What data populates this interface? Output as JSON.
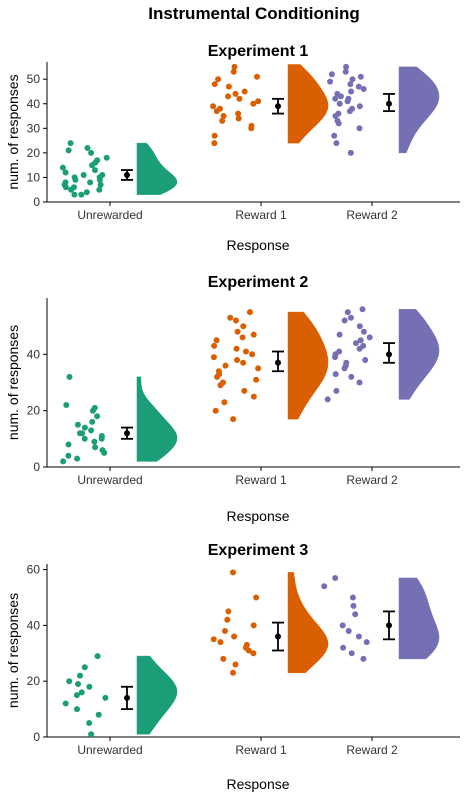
{
  "figure": {
    "title": "Instrumental Conditioning"
  },
  "colors": {
    "Unrewarded": "#1b9e77",
    "Reward 1": "#d95f02",
    "Reward 2": "#7570b3"
  },
  "chart_data": [
    {
      "type": "scatter",
      "subtype": "raincloud",
      "title": "Experiment 1",
      "xlabel": "Response",
      "ylabel": "num. of responses",
      "ylim": [
        0,
        57
      ],
      "yticks": [
        0,
        10,
        20,
        30,
        40,
        50
      ],
      "categories": [
        "Unrewarded",
        "Reward 1",
        "Reward 2"
      ],
      "series": [
        {
          "category": "Unrewarded",
          "mean": 11,
          "ci": [
            9,
            13
          ],
          "points": [
            3,
            3,
            4,
            5,
            5,
            6,
            6,
            7,
            7,
            8,
            8,
            9,
            9,
            10,
            10,
            11,
            11,
            12,
            13,
            14,
            15,
            16,
            17,
            18,
            20,
            21,
            22,
            24
          ],
          "density_range": [
            3,
            24
          ]
        },
        {
          "category": "Reward 1",
          "mean": 39,
          "ci": [
            36,
            42
          ],
          "points": [
            24,
            27,
            30,
            31,
            33,
            34,
            35,
            36,
            37,
            38,
            39,
            40,
            41,
            42,
            43,
            44,
            45,
            47,
            48,
            50,
            51,
            53,
            55
          ],
          "density_range": [
            24,
            56
          ]
        },
        {
          "category": "Reward 2",
          "mean": 40,
          "ci": [
            37,
            44
          ],
          "points": [
            20,
            24,
            27,
            30,
            32,
            33,
            35,
            36,
            37,
            38,
            39,
            40,
            41,
            42,
            42,
            43,
            44,
            45,
            46,
            47,
            48,
            49,
            50,
            51,
            52,
            53,
            55
          ],
          "density_range": [
            20,
            55
          ]
        }
      ]
    },
    {
      "type": "scatter",
      "subtype": "raincloud",
      "title": "Experiment 2",
      "xlabel": "Response",
      "ylabel": "num. of responses",
      "ylim": [
        0,
        60
      ],
      "yticks": [
        0,
        20,
        40
      ],
      "categories": [
        "Unrewarded",
        "Reward 1",
        "Reward 2"
      ],
      "series": [
        {
          "category": "Unrewarded",
          "mean": 12,
          "ci": [
            10,
            14
          ],
          "points": [
            2,
            3,
            4,
            5,
            6,
            7,
            8,
            9,
            10,
            10,
            11,
            12,
            12,
            13,
            14,
            15,
            16,
            18,
            20,
            21,
            22,
            32
          ],
          "density_range": [
            2,
            32
          ]
        },
        {
          "category": "Reward 1",
          "mean": 37,
          "ci": [
            34,
            41
          ],
          "points": [
            17,
            20,
            23,
            25,
            27,
            29,
            30,
            31,
            32,
            33,
            34,
            35,
            36,
            37,
            38,
            39,
            40,
            41,
            42,
            43,
            45,
            46,
            47,
            48,
            50,
            52,
            53,
            55
          ],
          "density_range": [
            17,
            55
          ]
        },
        {
          "category": "Reward 2",
          "mean": 40,
          "ci": [
            37,
            44
          ],
          "points": [
            24,
            27,
            30,
            32,
            33,
            35,
            36,
            37,
            38,
            39,
            40,
            41,
            42,
            43,
            44,
            45,
            46,
            47,
            48,
            50,
            52,
            53,
            55,
            56
          ],
          "density_range": [
            24,
            56
          ]
        }
      ]
    },
    {
      "type": "scatter",
      "subtype": "raincloud",
      "title": "Experiment 3",
      "xlabel": "Response",
      "ylabel": "num. of responses",
      "ylim": [
        0,
        62
      ],
      "yticks": [
        0,
        20,
        40,
        60
      ],
      "categories": [
        "Unrewarded",
        "Reward 1",
        "Reward 2"
      ],
      "series": [
        {
          "category": "Unrewarded",
          "mean": 14,
          "ci": [
            10,
            18
          ],
          "points": [
            1,
            5,
            8,
            10,
            12,
            14,
            15,
            16,
            18,
            19,
            20,
            22,
            25,
            29
          ],
          "density_range": [
            1,
            29
          ]
        },
        {
          "category": "Reward 1",
          "mean": 36,
          "ci": [
            31,
            41
          ],
          "points": [
            23,
            26,
            28,
            30,
            31,
            32,
            33,
            34,
            35,
            36,
            38,
            40,
            42,
            45,
            50,
            59
          ],
          "density_range": [
            23,
            59
          ]
        },
        {
          "category": "Reward 2",
          "mean": 40,
          "ci": [
            35,
            45
          ],
          "points": [
            28,
            30,
            32,
            34,
            36,
            38,
            40,
            44,
            47,
            50,
            54,
            57
          ],
          "density_range": [
            28,
            57
          ]
        }
      ]
    }
  ]
}
